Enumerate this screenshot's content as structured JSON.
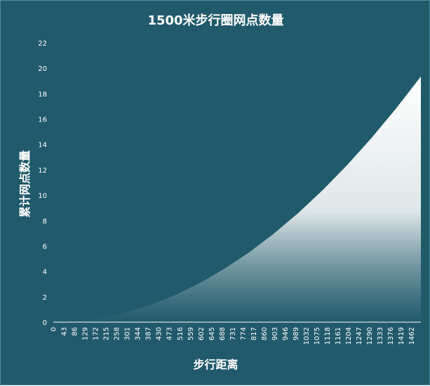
{
  "chart_data": {
    "type": "area",
    "title": "1500米步行圈网点数量",
    "xlabel": "步行距离",
    "ylabel": "累计网点数量",
    "x_ticks": [
      "0",
      "43",
      "86",
      "129",
      "172",
      "215",
      "258",
      "301",
      "344",
      "387",
      "430",
      "473",
      "516",
      "559",
      "602",
      "645",
      "688",
      "731",
      "774",
      "817",
      "860",
      "903",
      "946",
      "989",
      "1032",
      "1075",
      "1118",
      "1161",
      "1204",
      "1247",
      "1290",
      "1333",
      "1376",
      "1419",
      "1462"
    ],
    "y_ticks": [
      "0",
      "2",
      "4",
      "6",
      "8",
      "10",
      "12",
      "14",
      "16",
      "18",
      "20",
      "22"
    ],
    "xlim": [
      0,
      1500
    ],
    "ylim": [
      0,
      22
    ],
    "grid": false,
    "legend": "none",
    "series": [
      {
        "x": [
          0,
          100,
          200,
          300,
          400,
          500,
          600,
          700,
          800,
          900,
          1000,
          1100,
          1200,
          1300,
          1400,
          1500
        ],
        "values": [
          0,
          0.09,
          0.35,
          0.78,
          1.38,
          2.15,
          3.1,
          4.22,
          5.51,
          6.97,
          8.6,
          10.41,
          12.39,
          14.54,
          16.86,
          19.35
        ]
      }
    ],
    "colors": {
      "background": "#215a6b",
      "fill_top": "#ffffff",
      "fill_bottom": "#215a6b",
      "text": "#ffffff"
    }
  }
}
